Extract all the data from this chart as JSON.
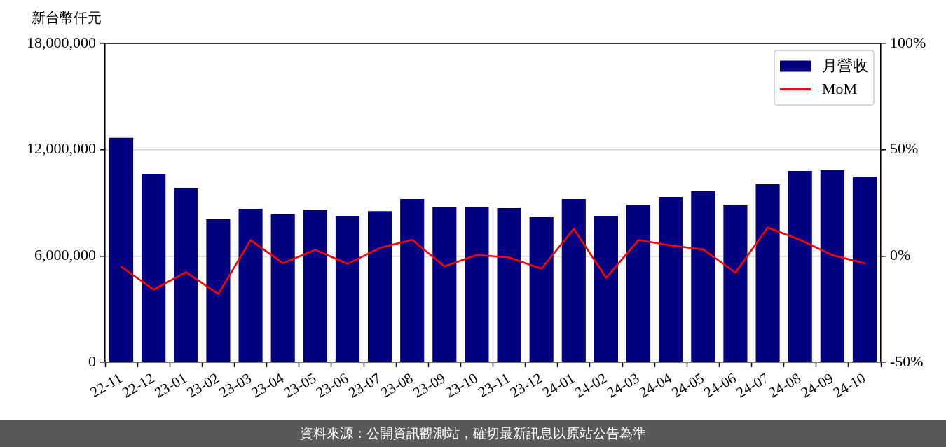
{
  "chart_data": {
    "type": "bar",
    "ylabel": "新台幣仟元",
    "categories": [
      "22-11",
      "22-12",
      "23-01",
      "23-02",
      "23-03",
      "23-04",
      "23-05",
      "23-06",
      "23-07",
      "23-08",
      "23-09",
      "23-10",
      "23-11",
      "23-12",
      "24-01",
      "24-02",
      "24-03",
      "24-04",
      "24-05",
      "24-06",
      "24-07",
      "24-08",
      "24-09",
      "24-10"
    ],
    "series": [
      {
        "name": "月營收",
        "color": "#000080",
        "values": [
          12670000,
          10640000,
          9810000,
          8070000,
          8660000,
          8350000,
          8580000,
          8270000,
          8540000,
          9220000,
          8740000,
          8780000,
          8700000,
          8190000,
          9220000,
          8270000,
          8900000,
          9340000,
          9650000,
          8860000,
          10050000,
          10800000,
          10850000,
          10480000
        ]
      },
      {
        "name": "MoM",
        "type": "line",
        "axis": "y2",
        "color": "#ff0000",
        "values": [
          -5.1,
          -15.8,
          -7.6,
          -17.9,
          7.5,
          -3.4,
          2.9,
          -3.7,
          3.8,
          7.6,
          -4.9,
          0.5,
          -0.7,
          -6.0,
          12.8,
          -10.3,
          7.5,
          5.0,
          3.1,
          -7.8,
          13.4,
          7.6,
          0.4,
          -3.4
        ]
      }
    ],
    "ylim": [
      0,
      18000000
    ],
    "yticks": [
      {
        "value": 0,
        "label": "0"
      },
      {
        "value": 6000000,
        "label": "6,000,000"
      },
      {
        "value": 12000000,
        "label": "12,000,000"
      },
      {
        "value": 18000000,
        "label": "18,000,000"
      }
    ],
    "y2lim": [
      -50,
      100
    ],
    "y2ticks": [
      {
        "value": -50,
        "label": "-50%"
      },
      {
        "value": 0,
        "label": "0%"
      },
      {
        "value": 50,
        "label": "50%"
      },
      {
        "value": 100,
        "label": "100%"
      }
    ],
    "grid": "y",
    "legend": "top right",
    "annotations": [
      "資料來源：公開資訊觀測站，確切最新訊息以原站公告為準"
    ]
  }
}
